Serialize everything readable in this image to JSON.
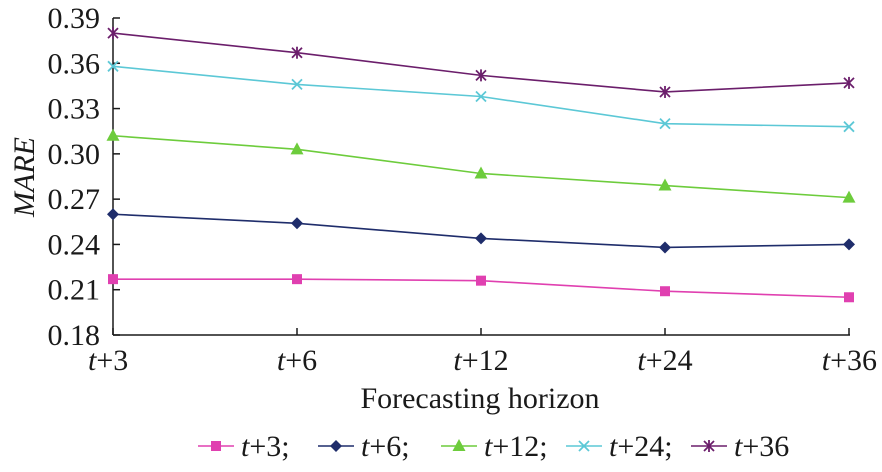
{
  "chart_data": {
    "type": "line",
    "categories": [
      "t+3",
      "t+6",
      "t+12",
      "t+24",
      "t+36"
    ],
    "xlabel": "Forecasting horizon",
    "ylabel": "MARE",
    "ylim": [
      0.18,
      0.39
    ],
    "yticks": [
      "0.18",
      "0.21",
      "0.24",
      "0.27",
      "0.30",
      "0.33",
      "0.36",
      "0.39"
    ],
    "grid": false,
    "legend_position": "bottom",
    "series": [
      {
        "name": "t+3",
        "legend_label": "t+3;",
        "color": "#e040b0",
        "marker": "square",
        "values": [
          0.217,
          0.217,
          0.216,
          0.209,
          0.205
        ]
      },
      {
        "name": "t+6",
        "legend_label": "t+6;",
        "color": "#1f2d6b",
        "marker": "diamond",
        "values": [
          0.26,
          0.254,
          0.244,
          0.238,
          0.24
        ]
      },
      {
        "name": "t+12",
        "legend_label": "t+12;",
        "color": "#6dcc3c",
        "marker": "triangle",
        "values": [
          0.312,
          0.303,
          0.287,
          0.279,
          0.271
        ]
      },
      {
        "name": "t+24",
        "legend_label": "t+24;",
        "color": "#5cc8d6",
        "marker": "x",
        "values": [
          0.358,
          0.346,
          0.338,
          0.32,
          0.318
        ]
      },
      {
        "name": "t+36",
        "legend_label": "t+36",
        "color": "#6b1e6b",
        "marker": "star",
        "values": [
          0.38,
          0.367,
          0.352,
          0.341,
          0.347
        ]
      }
    ]
  }
}
